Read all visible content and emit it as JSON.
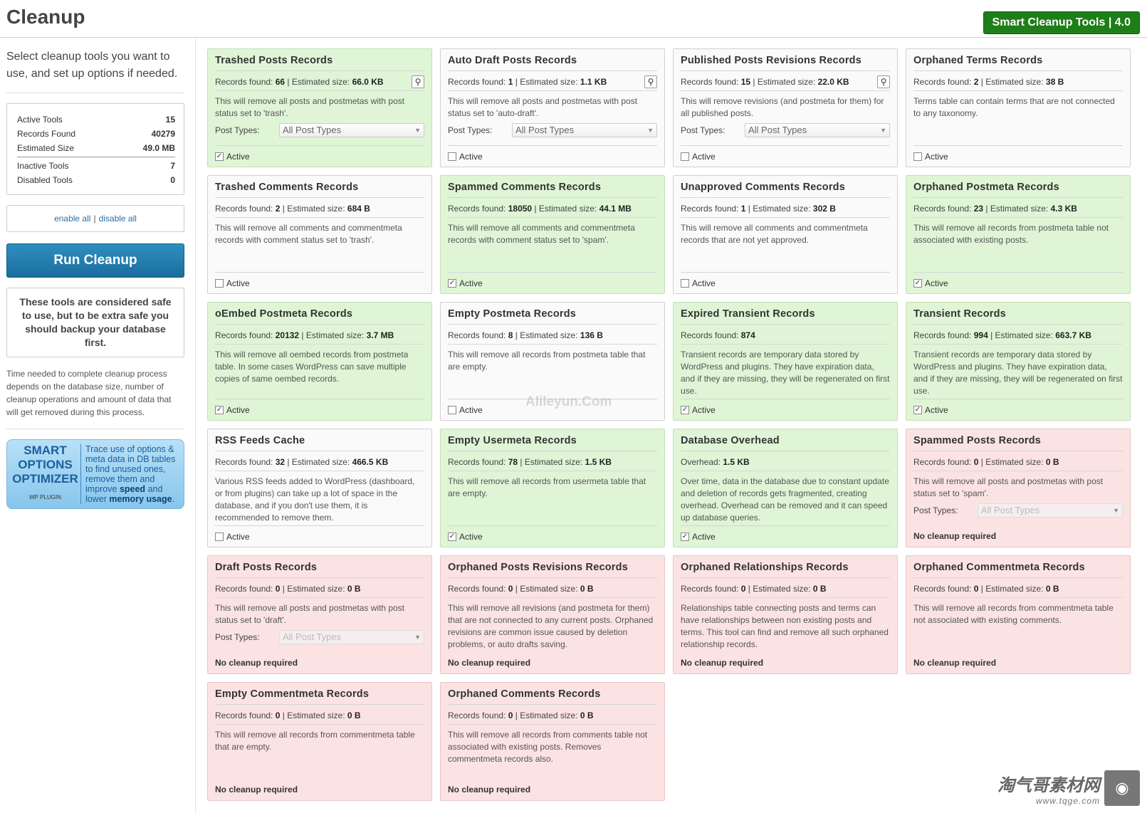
{
  "header": {
    "title": "Cleanup",
    "version_badge": "Smart Cleanup Tools | 4.0"
  },
  "sidebar": {
    "intro": "Select cleanup tools you want to use, and set up options if needed.",
    "stats": {
      "active_tools_label": "Active Tools",
      "active_tools": "15",
      "records_found_label": "Records Found",
      "records_found": "40279",
      "estimated_size_label": "Estimated Size",
      "estimated_size": "49.0 MB",
      "inactive_tools_label": "Inactive Tools",
      "inactive_tools": "7",
      "disabled_tools_label": "Disabled Tools",
      "disabled_tools": "0"
    },
    "enable_all": "enable all",
    "separator": "|",
    "disable_all": "disable all",
    "run_button": "Run Cleanup",
    "warning": "These tools are considered safe to use, but to be extra safe you should backup your database first.",
    "note": "Time needed to complete cleanup process depends on the database size, number of cleanup operations and amount of data that will get removed during this process.",
    "promo": {
      "line1": "SMART",
      "line2": "OPTIONS",
      "line3": "OPTIMIZER",
      "sub": "WP PLUGIN",
      "text_a": "Trace use of options & meta data in DB tables to find unused ones, remove them and improve ",
      "text_b": "speed",
      "text_c": " and lower ",
      "text_d": "memory usage",
      "text_e": "."
    }
  },
  "labels": {
    "records_found": "Records found: ",
    "estimated_size": " | Estimated size: ",
    "post_types": "Post Types:",
    "active": "Active",
    "no_cleanup": "No cleanup required",
    "all_post_types": "All Post Types"
  },
  "tools": [
    {
      "title": "Trashed Posts Records",
      "state": "green",
      "records_label": "Records found: ",
      "records": "66",
      "size_label": " | Estimated size: ",
      "size": "66.0 KB",
      "search": true,
      "desc": "This will remove all posts and postmetas with post status set to 'trash'.",
      "post_types": true,
      "checked": true
    },
    {
      "title": "Auto Draft Posts Records",
      "state": "white",
      "records_label": "Records found: ",
      "records": "1",
      "size_label": " | Estimated size: ",
      "size": "1.1 KB",
      "search": true,
      "desc": "This will remove all posts and postmetas with post status set to 'auto-draft'.",
      "post_types": true,
      "checked": false
    },
    {
      "title": "Published Posts Revisions Records",
      "state": "white",
      "records_label": "Records found: ",
      "records": "15",
      "size_label": " | Estimated size: ",
      "size": "22.0 KB",
      "search": true,
      "desc": "This will remove revisions (and postmeta for them) for all published posts.",
      "post_types": true,
      "checked": false
    },
    {
      "title": "Orphaned Terms Records",
      "state": "white",
      "records_label": "Records found: ",
      "records": "2",
      "size_label": " | Estimated size: ",
      "size": "38 B",
      "search": false,
      "desc": "Terms table can contain terms that are not connected to any taxonomy.",
      "post_types": false,
      "checked": false
    },
    {
      "title": "Trashed Comments Records",
      "state": "white",
      "records_label": "Records found: ",
      "records": "2",
      "size_label": " | Estimated size: ",
      "size": "684 B",
      "search": false,
      "desc": "This will remove all comments and commentmeta records with comment status set to 'trash'.",
      "post_types": false,
      "checked": false
    },
    {
      "title": "Spammed Comments Records",
      "state": "green",
      "records_label": "Records found: ",
      "records": "18050",
      "size_label": " | Estimated size: ",
      "size": "44.1 MB",
      "search": false,
      "desc": "This will remove all comments and commentmeta records with comment status set to 'spam'.",
      "post_types": false,
      "checked": true
    },
    {
      "title": "Unapproved Comments Records",
      "state": "white",
      "records_label": "Records found: ",
      "records": "1",
      "size_label": " | Estimated size: ",
      "size": "302 B",
      "search": false,
      "desc": "This will remove all comments and commentmeta records that are not yet approved.",
      "post_types": false,
      "checked": false
    },
    {
      "title": "Orphaned Postmeta Records",
      "state": "green",
      "records_label": "Records found: ",
      "records": "23",
      "size_label": " | Estimated size: ",
      "size": "4.3 KB",
      "search": false,
      "desc": "This will remove all records from postmeta table not associated with existing posts.",
      "post_types": false,
      "checked": true
    },
    {
      "title": "oEmbed Postmeta Records",
      "state": "green",
      "records_label": "Records found: ",
      "records": "20132",
      "size_label": " | Estimated size: ",
      "size": "3.7 MB",
      "search": false,
      "desc": "This will remove all oembed records from postmeta table. In some cases WordPress can save multiple copies of same oembed records.",
      "post_types": false,
      "checked": true
    },
    {
      "title": "Empty Postmeta Records",
      "state": "white",
      "records_label": "Records found: ",
      "records": "8",
      "size_label": " | Estimated size: ",
      "size": "136 B",
      "search": false,
      "desc": "This will remove all records from postmeta table that are empty.",
      "post_types": false,
      "checked": false
    },
    {
      "title": "Expired Transient Records",
      "state": "green",
      "records_label": "Records found: ",
      "records": "874",
      "size_label": "",
      "size": "",
      "search": false,
      "desc": "Transient records are temporary data stored by WordPress and plugins. They have expiration data, and if they are missing, they will be regenerated on first use.",
      "post_types": false,
      "checked": true
    },
    {
      "title": "Transient Records",
      "state": "green",
      "records_label": "Records found: ",
      "records": "994",
      "size_label": " | Estimated size: ",
      "size": "663.7 KB",
      "search": false,
      "desc": "Transient records are temporary data stored by WordPress and plugins. They have expiration data, and if they are missing, they will be regenerated on first use.",
      "post_types": false,
      "checked": true
    },
    {
      "title": "RSS Feeds Cache",
      "state": "white",
      "records_label": "Records found: ",
      "records": "32",
      "size_label": " | Estimated size: ",
      "size": "466.5 KB",
      "search": false,
      "desc": "Various RSS feeds added to WordPress (dashboard, or from plugins) can take up a lot of space in the database, and if you don't use them, it is recommended to remove them.",
      "post_types": false,
      "checked": false
    },
    {
      "title": "Empty Usermeta Records",
      "state": "green",
      "records_label": "Records found: ",
      "records": "78",
      "size_label": " | Estimated size: ",
      "size": "1.5 KB",
      "search": false,
      "desc": "This will remove all records from usermeta table that are empty.",
      "post_types": false,
      "checked": true
    },
    {
      "title": "Database Overhead",
      "state": "green",
      "records_label": "Overhead: ",
      "records": "1.5 KB",
      "size_label": "",
      "size": "",
      "search": false,
      "desc": "Over time, data in the database due to constant update and deletion of records gets fragmented, creating overhead. Overhead can be removed and it can speed up database queries.",
      "post_types": false,
      "checked": true
    },
    {
      "title": "Spammed Posts Records",
      "state": "red",
      "records_label": "Records found: ",
      "records": "0",
      "size_label": " | Estimated size: ",
      "size": "0 B",
      "search": false,
      "desc": "This will remove all posts and postmetas with post status set to 'spam'.",
      "post_types": true,
      "checked": false
    },
    {
      "title": "Draft Posts Records",
      "state": "red",
      "records_label": "Records found: ",
      "records": "0",
      "size_label": " | Estimated size: ",
      "size": "0 B",
      "search": false,
      "desc": "This will remove all posts and postmetas with post status set to 'draft'.",
      "post_types": true,
      "checked": false
    },
    {
      "title": "Orphaned Posts Revisions Records",
      "state": "red",
      "records_label": "Records found: ",
      "records": "0",
      "size_label": " | Estimated size: ",
      "size": "0 B",
      "search": false,
      "desc": "This will remove all revisions (and postmeta for them) that are not connected to any current posts. Orphaned revisions are common issue caused by deletion problems, or auto drafts saving.",
      "post_types": false,
      "checked": false
    },
    {
      "title": "Orphaned Relationships Records",
      "state": "red",
      "records_label": "Records found: ",
      "records": "0",
      "size_label": " | Estimated size: ",
      "size": "0 B",
      "search": false,
      "desc": "Relationships table connecting posts and terms can have relationships between non existing posts and terms. This tool can find and remove all such orphaned relationship records.",
      "post_types": false,
      "checked": false
    },
    {
      "title": "Orphaned Commentmeta Records",
      "state": "red",
      "records_label": "Records found: ",
      "records": "0",
      "size_label": " | Estimated size: ",
      "size": "0 B",
      "search": false,
      "desc": "This will remove all records from commentmeta table not associated with existing comments.",
      "post_types": false,
      "checked": false
    },
    {
      "title": "Empty Commentmeta Records",
      "state": "red",
      "records_label": "Records found: ",
      "records": "0",
      "size_label": " | Estimated size: ",
      "size": "0 B",
      "search": false,
      "desc": "This will remove all records from commentmeta table that are empty.",
      "post_types": false,
      "checked": false
    },
    {
      "title": "Orphaned Comments Records",
      "state": "red",
      "records_label": "Records found: ",
      "records": "0",
      "size_label": " | Estimated size: ",
      "size": "0 B",
      "search": false,
      "desc": "This will remove all records from comments table not associated with existing posts. Removes commentmeta records also.",
      "post_types": false,
      "checked": false
    }
  ],
  "watermark": {
    "center": "Alileyun.Com",
    "logo_cn": "淘气哥素材网",
    "logo_url": "www.tqge.com"
  },
  "colors": {
    "active_card": "#dff5d6",
    "inactive_card": "#fafafa",
    "disabled_card": "#fbe3e3",
    "run_button": "#1a6e9e",
    "version_badge": "#1e7e18"
  }
}
